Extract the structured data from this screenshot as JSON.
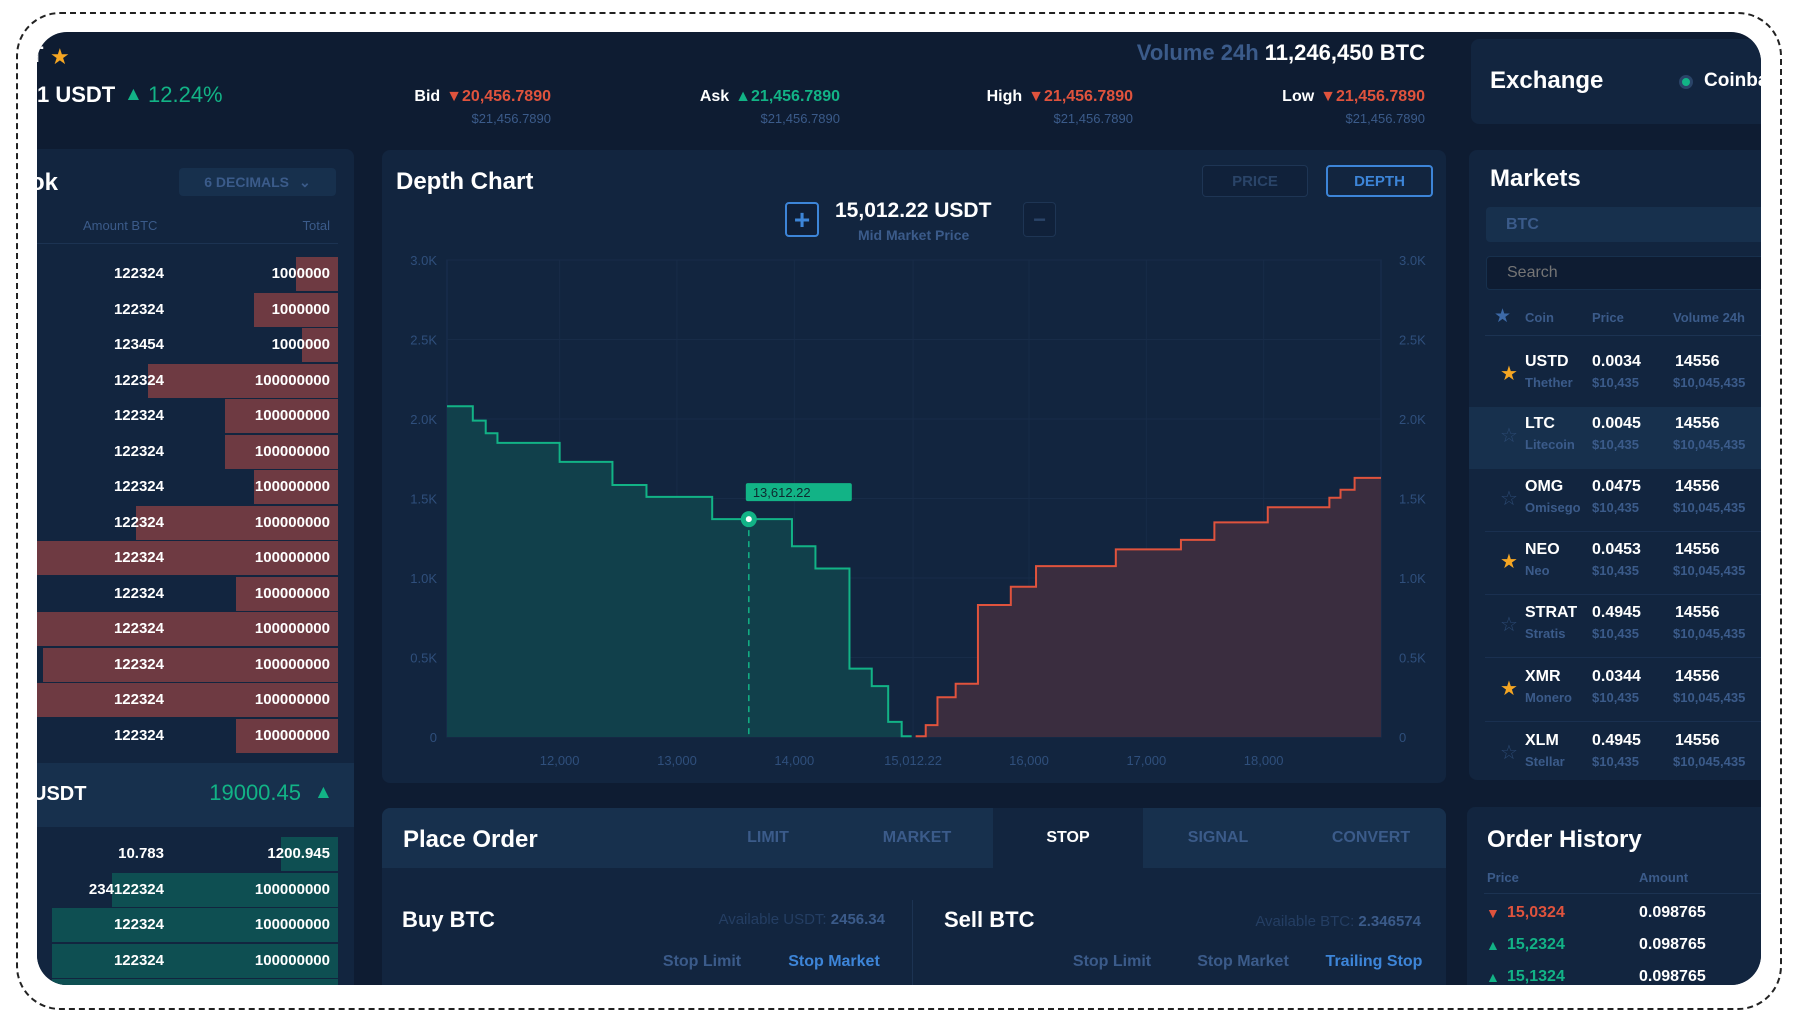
{
  "header": {
    "pair_fragment": "T",
    "price_fragment": "1 USDT",
    "change": "12.24%",
    "volume_label": "Volume 24h",
    "volume_value": "11,246,450 BTC",
    "stats": [
      {
        "label": "Bid",
        "direction": "down",
        "value": "20,456.7890",
        "usd": "$21,456.7890"
      },
      {
        "label": "Ask",
        "direction": "up",
        "value": "21,456.7890",
        "usd": "$21,456.7890"
      },
      {
        "label": "High",
        "direction": "down",
        "value": "21,456.7890",
        "usd": "$21,456.7890"
      },
      {
        "label": "Low",
        "direction": "down",
        "value": "21,456.7890",
        "usd": "$21,456.7890"
      }
    ]
  },
  "order_book": {
    "title_fragment": "ok",
    "decimals": "6 DECIMALS",
    "col_amount": "Amount BTC",
    "col_total": "Total",
    "asks": [
      {
        "amount": "122324",
        "total": "1000000",
        "fill": 0.14
      },
      {
        "amount": "122324",
        "total": "1000000",
        "fill": 0.28
      },
      {
        "amount": "123454",
        "total": "1000000",
        "fill": 0.12
      },
      {
        "amount": "122324",
        "total": "100000000",
        "fill": 0.63
      },
      {
        "amount": "122324",
        "total": "100000000",
        "fill": 0.375
      },
      {
        "amount": "122324",
        "total": "100000000",
        "fill": 0.375
      },
      {
        "amount": "122324",
        "total": "100000000",
        "fill": 0.28
      },
      {
        "amount": "122324",
        "total": "100000000",
        "fill": 0.67
      },
      {
        "amount": "122324",
        "total": "100000000",
        "fill": 1.0
      },
      {
        "amount": "122324",
        "total": "100000000",
        "fill": 0.34
      },
      {
        "amount": "122324",
        "total": "100000000",
        "fill": 1.0
      },
      {
        "amount": "122324",
        "total": "100000000",
        "fill": 0.98
      },
      {
        "amount": "122324",
        "total": "100000000",
        "fill": 1.0
      },
      {
        "amount": "122324",
        "total": "100000000",
        "fill": 0.34
      }
    ],
    "mid_label_fragment": "USDT",
    "mid_price": "19000.45",
    "bids": [
      {
        "amount": "10.783",
        "total": "1200.945",
        "fill": 0.19
      },
      {
        "amount": "234122324",
        "total": "100000000",
        "fill": 0.75
      },
      {
        "amount": "122324",
        "total": "100000000",
        "fill": 0.95
      },
      {
        "amount": "122324",
        "total": "100000000",
        "fill": 0.95
      },
      {
        "amount": "",
        "total": "",
        "fill": 0.95
      }
    ]
  },
  "depth_chart": {
    "title": "Depth Chart",
    "price_button": "PRICE",
    "depth_button": "DEPTH",
    "active_view": "DEPTH",
    "mid_price": "15,012.22 USDT",
    "mid_label": "Mid Market Price"
  },
  "chart_data": {
    "type": "area",
    "step": true,
    "xlim": [
      11040,
      19000
    ],
    "ylim": [
      0,
      3000
    ],
    "x_ticks": [
      "12,000",
      "13,000",
      "14,000",
      "15,012.22",
      "16,000",
      "17,000",
      "18,000"
    ],
    "x_tick_values": [
      12000,
      13000,
      14000,
      15012.22,
      16000,
      17000,
      18000
    ],
    "y_ticks": [
      "0",
      "0.5K",
      "1.0K",
      "1.5K",
      "2.0K",
      "2.5K",
      "3.0K"
    ],
    "y_tick_values": [
      0,
      500,
      1000,
      1500,
      2000,
      2500,
      3000
    ],
    "grid": true,
    "series": [
      {
        "side": "bid",
        "color": "#12b386",
        "end": 15000,
        "steps": [
          [
            11040,
            2080
          ],
          [
            11260,
            1990
          ],
          [
            11370,
            1910
          ],
          [
            11470,
            1850
          ],
          [
            12000,
            1730
          ],
          [
            12450,
            1585
          ],
          [
            12740,
            1510
          ],
          [
            13300,
            1370
          ],
          [
            13980,
            1200
          ],
          [
            14180,
            1060
          ],
          [
            14470,
            430
          ],
          [
            14660,
            320
          ],
          [
            14800,
            95
          ],
          [
            14915,
            5
          ]
        ]
      },
      {
        "side": "ask",
        "color": "#e0533d",
        "end": 19000,
        "steps": [
          [
            15034,
            5
          ],
          [
            15120,
            75
          ],
          [
            15220,
            250
          ],
          [
            15375,
            335
          ],
          [
            15565,
            830
          ],
          [
            15845,
            945
          ],
          [
            16060,
            1075
          ],
          [
            16740,
            1180
          ],
          [
            17295,
            1240
          ],
          [
            17580,
            1350
          ],
          [
            18035,
            1445
          ],
          [
            18560,
            1505
          ],
          [
            18655,
            1555
          ],
          [
            18775,
            1630
          ]
        ]
      }
    ],
    "marker": {
      "x": 13612.22,
      "y": 1370,
      "label": "13,612.22"
    }
  },
  "place_order": {
    "title": "Place Order",
    "tabs": [
      "LIMIT",
      "MARKET",
      "STOP",
      "SIGNAL",
      "CONVERT"
    ],
    "active_tab": "STOP",
    "buy": {
      "title": "Buy BTC",
      "available_label": "Available USDT:",
      "available_value": "2456.34",
      "types": [
        "Stop Limit",
        "Stop Market"
      ],
      "active_type": "Stop Market"
    },
    "sell": {
      "title": "Sell BTC",
      "available_label": "Available BTC:",
      "available_value": "2.346574",
      "types": [
        "Stop Limit",
        "Stop Market",
        "Trailing Stop"
      ],
      "active_type": "Trailing Stop"
    }
  },
  "exchange": {
    "title": "Exchange",
    "value_fragment": "Coinba",
    "status_color": "#12b386"
  },
  "markets": {
    "title": "Markets",
    "tab": "BTC",
    "search_placeholder": "Search",
    "cols": [
      "Coin",
      "Price",
      "Volume 24h"
    ],
    "rows": [
      {
        "coin": "USTD",
        "name": "Thether",
        "price": "0.0034",
        "price_usd": "$10,435",
        "volume": "14556",
        "volume_usd": "$10,045,435",
        "favorite": true
      },
      {
        "coin": "LTC",
        "name": "Litecoin",
        "price": "0.0045",
        "price_usd": "$10,435",
        "volume": "14556",
        "volume_usd": "$10,045,435",
        "favorite": false,
        "highlighted": true
      },
      {
        "coin": "OMG",
        "name": "Omisego",
        "price": "0.0475",
        "price_usd": "$10,435",
        "volume": "14556",
        "volume_usd": "$10,045,435",
        "favorite": false
      },
      {
        "coin": "NEO",
        "name": "Neo",
        "price": "0.0453",
        "price_usd": "$10,435",
        "volume": "14556",
        "volume_usd": "$10,045,435",
        "favorite": true
      },
      {
        "coin": "STRAT",
        "name": "Stratis",
        "price": "0.4945",
        "price_usd": "$10,435",
        "volume": "14556",
        "volume_usd": "$10,045,435",
        "favorite": false
      },
      {
        "coin": "XMR",
        "name": "Monero",
        "price": "0.0344",
        "price_usd": "$10,435",
        "volume": "14556",
        "volume_usd": "$10,045,435",
        "favorite": true
      },
      {
        "coin": "XLM",
        "name": "Stellar",
        "price": "0.4945",
        "price_usd": "$10,435",
        "volume": "14556",
        "volume_usd": "$10,045,435",
        "favorite": false
      }
    ]
  },
  "order_history": {
    "title": "Order History",
    "cols": [
      "Price",
      "Amount"
    ],
    "rows": [
      {
        "price": "15,0324",
        "direction": "down",
        "amount": "0.098765"
      },
      {
        "price": "15,2324",
        "direction": "up",
        "amount": "0.098765"
      },
      {
        "price": "15,1324",
        "direction": "up",
        "amount": "0.098765"
      }
    ]
  },
  "colors": {
    "background": "#0e1c32",
    "panel": "#12253f",
    "green": "#12b386",
    "red": "#e0533d",
    "muted": "#3b5b8a",
    "accent": "#3d85d8",
    "favorite": "#f5a623"
  }
}
